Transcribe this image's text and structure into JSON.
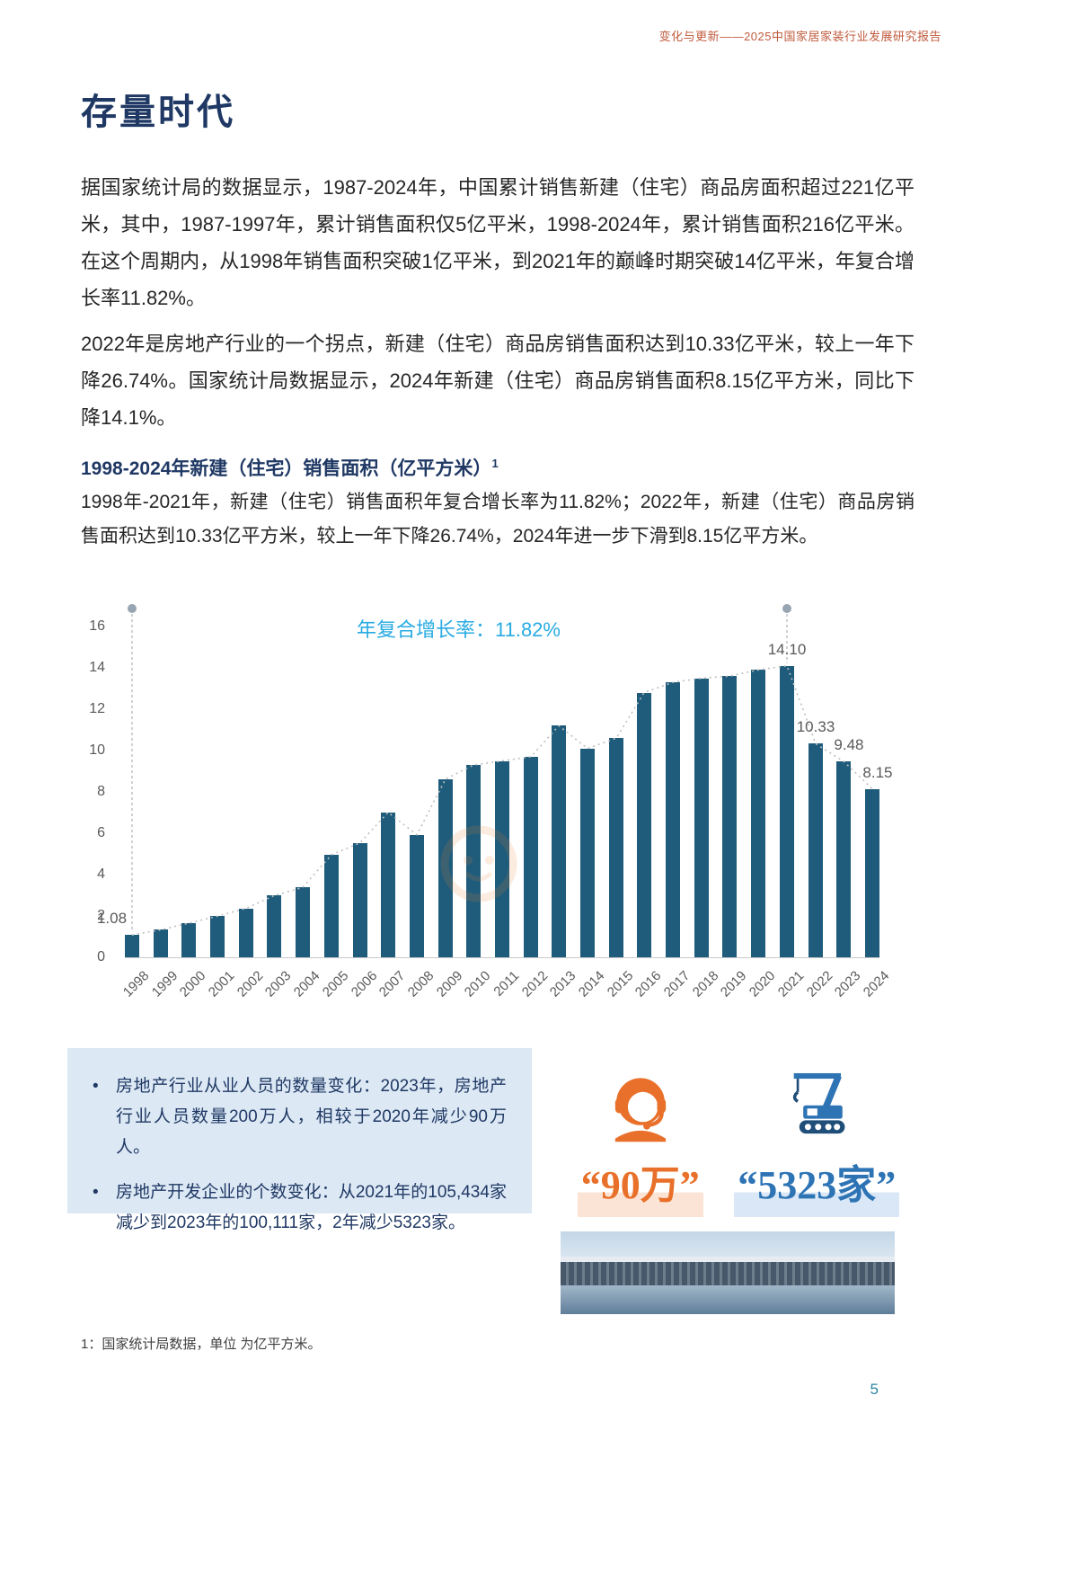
{
  "header": {
    "report_title": "变化与更新——2025中国家居家装行业发展研究报告"
  },
  "page": {
    "title": "存量时代",
    "paragraph1": "据国家统计局的数据显示，1987-2024年，中国累计销售新建（住宅）商品房面积超过221亿平米，其中，1987-1997年，累计销售面积仅5亿平米，1998-2024年，累计销售面积216亿平米。在这个周期内，从1998年销售面积突破1亿平米，到2021年的巅峰时期突破14亿平米，年复合增长率11.82%。",
    "paragraph2": "2022年是房地产行业的一个拐点，新建（住宅）商品房销售面积达到10.33亿平米，较上一年下降26.74%。国家统计局数据显示，2024年新建（住宅）商品房销售面积8.15亿平方米，同比下降14.1%。",
    "chart_heading": "1998-2024年新建（住宅）销售面积（亿平方米）",
    "chart_heading_footnote_mark": "1",
    "chart_subtitle": "1998年-2021年，新建（住宅）销售面积年复合增长率为11.82%；2022年，新建（住宅）商品房销售面积达到10.33亿平方米，较上一年下降26.74%，2024年进一步下滑到8.15亿平方米。"
  },
  "chart_data": {
    "type": "bar",
    "title": "1998-2024年新建（住宅）销售面积（亿平方米）",
    "annotation": "年复合增长率：11.82%",
    "categories": [
      "1998",
      "1999",
      "2000",
      "2001",
      "2002",
      "2003",
      "2004",
      "2005",
      "2006",
      "2007",
      "2008",
      "2009",
      "2010",
      "2011",
      "2012",
      "2013",
      "2014",
      "2015",
      "2016",
      "2017",
      "2018",
      "2019",
      "2020",
      "2021",
      "2022",
      "2023",
      "2024"
    ],
    "values": [
      1.08,
      1.33,
      1.65,
      1.99,
      2.37,
      2.98,
      3.38,
      4.96,
      5.54,
      7.01,
      5.93,
      8.62,
      9.3,
      9.5,
      9.7,
      11.2,
      10.1,
      10.6,
      12.8,
      13.3,
      13.5,
      13.6,
      13.9,
      14.1,
      10.33,
      9.48,
      8.15
    ],
    "labels": [
      {
        "category": "1998",
        "text": "1.08",
        "placement": "left"
      },
      {
        "category": "2021",
        "text": "14.10",
        "placement": "above"
      },
      {
        "category": "2022",
        "text": "10.33",
        "placement": "above"
      },
      {
        "category": "2023",
        "text": "9.48",
        "placement": "above-right"
      },
      {
        "category": "2024",
        "text": "8.15",
        "placement": "above-right"
      }
    ],
    "cagr_marker_categories": [
      "1998",
      "2021"
    ],
    "xlabel": "",
    "ylabel": "",
    "ylim": [
      0,
      16
    ],
    "yticks": [
      0,
      2,
      4,
      6,
      8,
      10,
      12,
      14,
      16
    ],
    "grid": false,
    "legend": false,
    "bar_color": "#1F5C7C",
    "trend_line_color": "#BFBFBF",
    "marker_color": "#97A5B2",
    "annotation_color": "#29ABE2"
  },
  "infobox": {
    "bullet_marker": "•",
    "bullets": [
      "房地产行业从业人员的数量变化：2023年，房地产行业人员数量200万人，相较于2020年减少90万人。",
      "房地产开发企业的个数变化：从2021年的105,434家减少到2023年的100,111家，2年减少5323家。"
    ]
  },
  "highlights": {
    "left": {
      "value": "“90万”",
      "color": "#E8702A"
    },
    "right": {
      "value": "“5323家”",
      "color": "#2E74B5"
    }
  },
  "footnote": "1：国家统计局数据，单位 为亿平方米。",
  "page_number": "5"
}
